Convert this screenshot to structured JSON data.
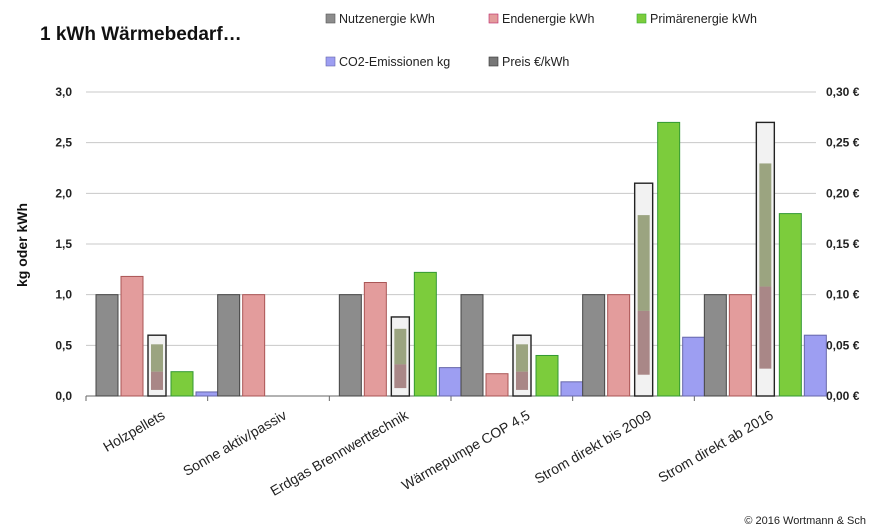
{
  "chart_data": {
    "type": "bar",
    "title": "1 kWh Wärmebedarf…",
    "ylabel": "kg oder kWh",
    "ylim": [
      0,
      3.0
    ],
    "y_ticks": [
      "0,0",
      "0,5",
      "1,0",
      "1,5",
      "2,0",
      "2,5",
      "3,0"
    ],
    "y2lim": [
      0,
      0.3
    ],
    "y2_ticks": [
      "0,00 €",
      "0,05 €",
      "0,10 €",
      "0,15 €",
      "0,20 €",
      "0,25 €",
      "0,30 €"
    ],
    "categories": [
      "Holzpellets",
      "Sonne aktiv/passiv",
      "Erdgas Brennwerttechnik",
      "Wärmepumpe COP 4,5",
      "Strom direkt bis 2009",
      "Strom direkt ab 2016"
    ],
    "grid": true,
    "legend_position": "top-right",
    "series": [
      {
        "name": "Nutzenergie kWh",
        "axis": "left",
        "color": "#8c8c8c",
        "values": [
          1.0,
          1.0,
          1.0,
          1.0,
          1.0,
          1.0
        ]
      },
      {
        "name": "Endenergie kWh",
        "axis": "left",
        "color": "#e39c9c",
        "values": [
          1.18,
          1.0,
          1.12,
          0.22,
          1.0,
          1.0
        ]
      },
      {
        "name": "Preis €/kWh",
        "axis": "right",
        "color": "#e8e8e8",
        "values": [
          0.06,
          0,
          0.078,
          0.06,
          0.21,
          0.27
        ]
      },
      {
        "name": "Primärenergie kWh",
        "axis": "left",
        "color": "#7ccc3c",
        "values": [
          0.24,
          0,
          1.22,
          0.4,
          2.7,
          1.8
        ]
      },
      {
        "name": "CO2-Emissionen kg",
        "axis": "left",
        "color": "#9d9ef2",
        "values": [
          0.04,
          0,
          0.28,
          0.14,
          0.58,
          0.6
        ]
      }
    ]
  },
  "footer": {
    "copyright": "© 2016 Wortmann & Sch"
  }
}
